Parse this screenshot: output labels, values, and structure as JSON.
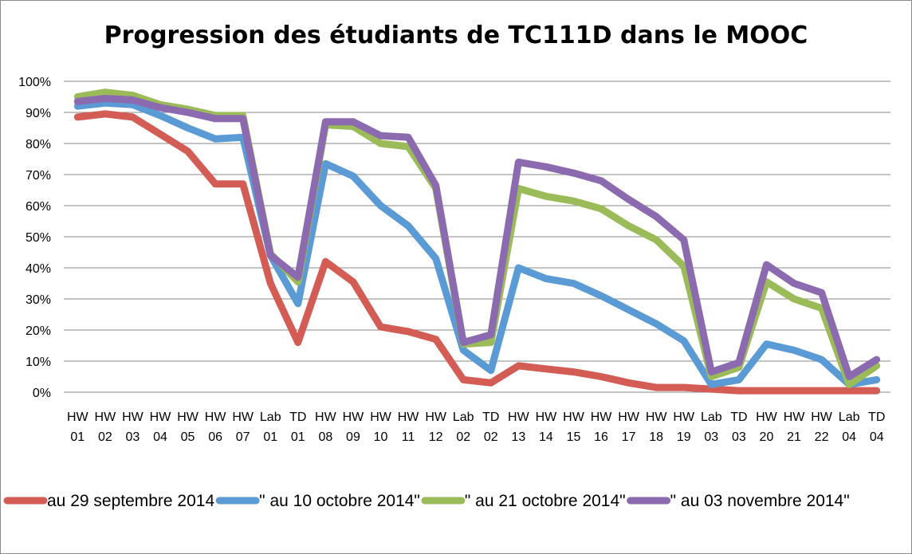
{
  "chart_data": {
    "type": "line",
    "title": "Progression des étudiants de TC111D dans le MOOC",
    "xlabel": "",
    "ylabel": "",
    "ylim": [
      0,
      100
    ],
    "y_ticks": [
      "0%",
      "10%",
      "20%",
      "30%",
      "40%",
      "50%",
      "60%",
      "70%",
      "80%",
      "90%",
      "100%"
    ],
    "grid": "horizontal",
    "legend_position": "bottom",
    "categories": [
      [
        "HW",
        "01"
      ],
      [
        "HW",
        "02"
      ],
      [
        "HW",
        "03"
      ],
      [
        "HW",
        "04"
      ],
      [
        "HW",
        "05"
      ],
      [
        "HW",
        "06"
      ],
      [
        "HW",
        "07"
      ],
      [
        "Lab",
        "01"
      ],
      [
        "TD",
        "01"
      ],
      [
        "HW",
        "08"
      ],
      [
        "HW",
        "09"
      ],
      [
        "HW",
        "10"
      ],
      [
        "HW",
        "11"
      ],
      [
        "HW",
        "12"
      ],
      [
        "Lab",
        "02"
      ],
      [
        "TD",
        "02"
      ],
      [
        "HW",
        "13"
      ],
      [
        "HW",
        "14"
      ],
      [
        "HW",
        "15"
      ],
      [
        "HW",
        "16"
      ],
      [
        "HW",
        "17"
      ],
      [
        "HW",
        "18"
      ],
      [
        "HW",
        "19"
      ],
      [
        "Lab",
        "03"
      ],
      [
        "TD",
        "03"
      ],
      [
        "HW",
        "20"
      ],
      [
        "HW",
        "21"
      ],
      [
        "HW",
        "22"
      ],
      [
        "Lab",
        "04"
      ],
      [
        "TD",
        "04"
      ]
    ],
    "series": [
      {
        "name": "au 29 septembre 2014",
        "color": "#d35d55",
        "values": [
          88.5,
          89.5,
          88.5,
          83,
          77.5,
          67,
          67,
          35,
          16,
          42,
          35.5,
          21,
          19.5,
          17,
          4,
          3,
          8.5,
          7.5,
          6.5,
          5,
          3,
          1.5,
          1.5,
          1,
          0.5,
          0.5,
          0.5,
          0.5,
          0.5,
          0.5
        ]
      },
      {
        "name": "\" au 10 octobre 2014\"",
        "color": "#5b9bd5",
        "values": [
          92,
          93,
          92.5,
          89,
          85,
          81.5,
          82,
          44,
          28.5,
          73.5,
          69.5,
          60,
          53.5,
          43,
          13.5,
          7,
          40,
          36.5,
          35,
          31,
          26.5,
          22,
          16.5,
          2.5,
          4,
          15.5,
          13.5,
          10.5,
          2.5,
          4
        ]
      },
      {
        "name": "\" au 21 octobre 2014\"",
        "color": "#9bbb59",
        "values": [
          95,
          96.5,
          95.5,
          92.5,
          91,
          89,
          89,
          44.5,
          35.5,
          86,
          85.5,
          80,
          79,
          65.5,
          15.5,
          16,
          65.5,
          63,
          61.5,
          59,
          53.5,
          49,
          40.5,
          5,
          8,
          35.5,
          30,
          27,
          2.5,
          8.5
        ]
      },
      {
        "name": "\" au 03 novembre 2014\"",
        "color": "#8c6ab0",
        "values": [
          93.5,
          94.5,
          94,
          91.5,
          90,
          88,
          88,
          44,
          37,
          87,
          87,
          82.5,
          82,
          66.5,
          16,
          18.5,
          74,
          72.5,
          70.5,
          68,
          62,
          56.5,
          49,
          6.5,
          9.5,
          41,
          35,
          32,
          5,
          10.5
        ]
      }
    ]
  }
}
